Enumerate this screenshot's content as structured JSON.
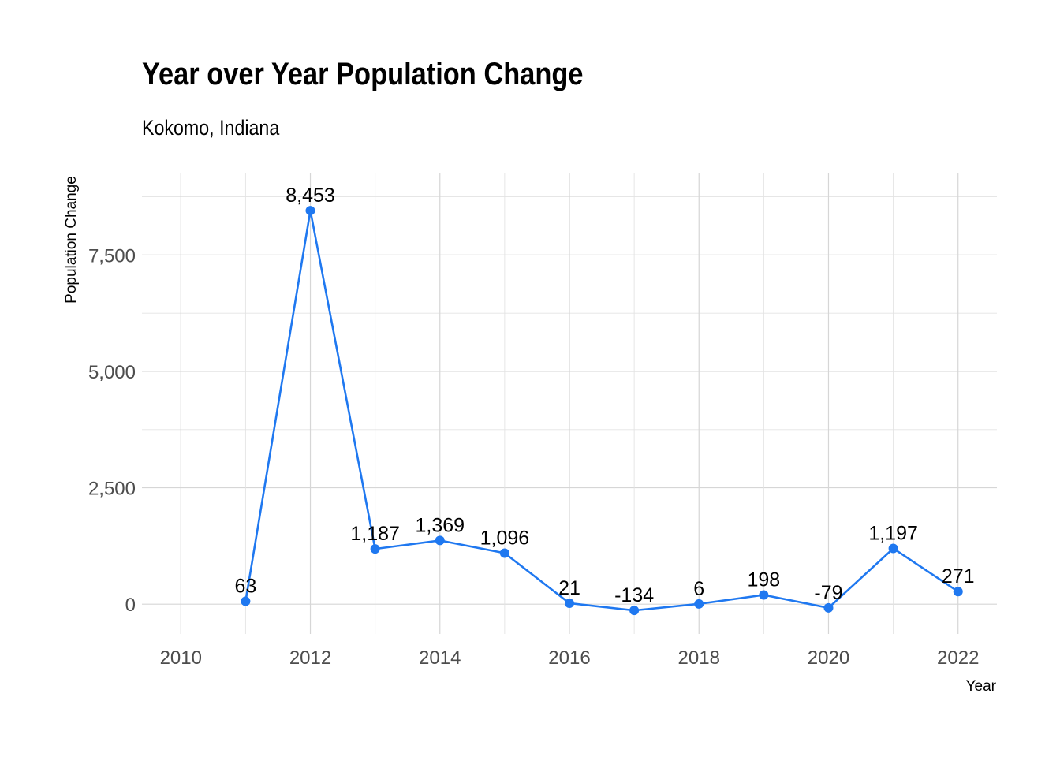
{
  "chart_data": {
    "type": "line",
    "title": "Year over Year Population Change",
    "subtitle": "Kokomo, Indiana",
    "xlabel": "Year",
    "ylabel": "Population Change",
    "x_ticks": [
      "2010",
      "2012",
      "2014",
      "2016",
      "2018",
      "2020",
      "2022"
    ],
    "y_ticks": [
      "0",
      "2,500",
      "5,000",
      "7,500"
    ],
    "xlim": [
      2009.4,
      2022.6
    ],
    "ylim": [
      -640,
      9250
    ],
    "grid": true,
    "series": [
      {
        "color": "#1f78f0",
        "points": [
          {
            "x": 2011,
            "y": 63,
            "label": "63"
          },
          {
            "x": 2012,
            "y": 8453,
            "label": "8,453"
          },
          {
            "x": 2013,
            "y": 1187,
            "label": "1,187"
          },
          {
            "x": 2014,
            "y": 1369,
            "label": "1,369"
          },
          {
            "x": 2015,
            "y": 1096,
            "label": "1,096"
          },
          {
            "x": 2016,
            "y": 21,
            "label": "21"
          },
          {
            "x": 2017,
            "y": -134,
            "label": "-134"
          },
          {
            "x": 2018,
            "y": 6,
            "label": "6"
          },
          {
            "x": 2019,
            "y": 198,
            "label": "198"
          },
          {
            "x": 2020,
            "y": -79,
            "label": "-79"
          },
          {
            "x": 2021,
            "y": 1197,
            "label": "1,197"
          },
          {
            "x": 2022,
            "y": 271,
            "label": "271"
          }
        ]
      }
    ]
  }
}
